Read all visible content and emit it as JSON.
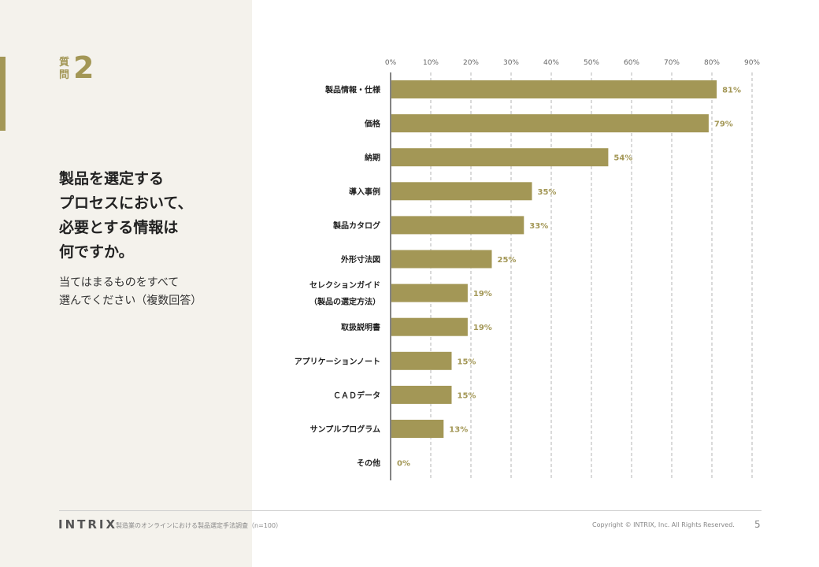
{
  "question": {
    "label_top": "質",
    "label_bottom": "問",
    "number": "2",
    "title_lines": [
      "製品を選定する",
      "プロセスにおいて、",
      "必要とする情報は",
      "何ですか。"
    ],
    "subtitle_lines": [
      "当てはまるものをすべて",
      "選んでください（複数回答）"
    ]
  },
  "chart_data": {
    "type": "bar",
    "orientation": "horizontal",
    "categories": [
      [
        "製品情報・仕様"
      ],
      [
        "価格"
      ],
      [
        "納期"
      ],
      [
        "導入事例"
      ],
      [
        "製品カタログ"
      ],
      [
        "外形寸法図"
      ],
      [
        "セレクションガイド",
        "（製品の選定方法）"
      ],
      [
        "取扱説明書"
      ],
      [
        "アプリケーションノート"
      ],
      [
        "ＣＡＤデータ"
      ],
      [
        "サンプルプログラム"
      ],
      [
        "その他"
      ]
    ],
    "values": [
      81,
      79,
      54,
      35,
      33,
      25,
      19,
      19,
      15,
      15,
      13,
      0
    ],
    "value_labels": [
      "81%",
      "79%",
      "54%",
      "35%",
      "33%",
      "25%",
      "19%",
      "19%",
      "15%",
      "15%",
      "13%",
      "0%"
    ],
    "x_ticks": [
      "0%",
      "10%",
      "20%",
      "30%",
      "40%",
      "50%",
      "60%",
      "70%",
      "80%",
      "90%"
    ],
    "xlim": [
      0,
      90
    ],
    "grid": "vertical-dashed",
    "axis_position": "top",
    "bar_color": "#a39756",
    "label_color": "#a39756"
  },
  "footer": {
    "logo": "INTRIX",
    "source": "製造業のオンラインにおける製品選定手法調査（n=100）",
    "copyright": "Copyright © INTRIX, Inc. All Rights Reserved.",
    "page": "5"
  }
}
